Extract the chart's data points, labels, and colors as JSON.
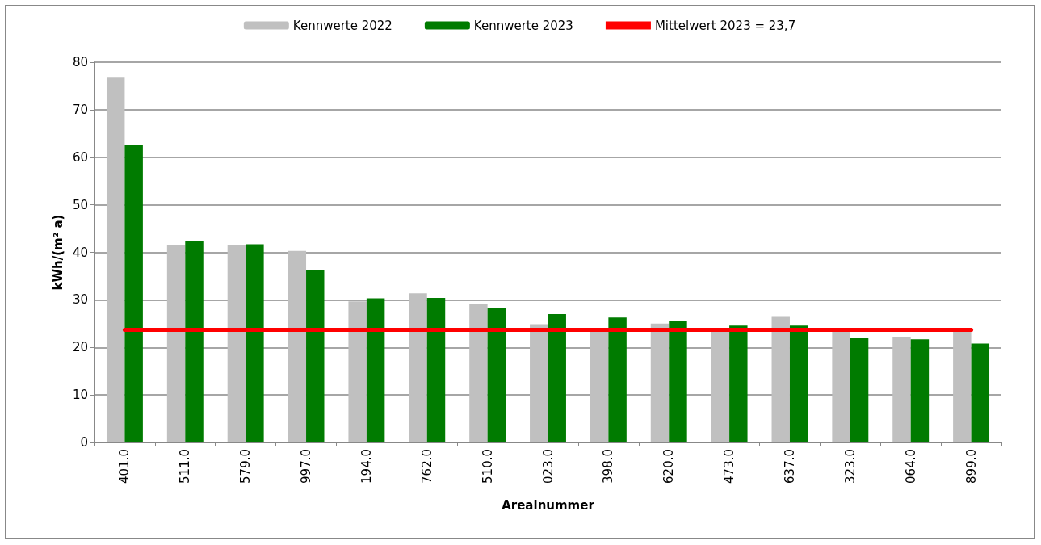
{
  "chart_data": {
    "type": "bar",
    "xlabel": "Arealnummer",
    "ylabel": "kWh/(m² a)",
    "categories": [
      "401.0",
      "511.0",
      "579.0",
      "997.0",
      "194.0",
      "762.0",
      "510.0",
      "023.0",
      "398.0",
      "620.0",
      "473.0",
      "637.0",
      "323.0",
      "064.0",
      "899.0"
    ],
    "series": [
      {
        "name": "Kennwerte 2022",
        "color": "#c0c0c0",
        "values": [
          76.9,
          41.6,
          41.5,
          40.3,
          29.7,
          31.4,
          29.2,
          24.9,
          23.6,
          25.0,
          23.6,
          26.6,
          23.6,
          22.2,
          23.6
        ]
      },
      {
        "name": "Kennwerte 2023",
        "color": "#007b00",
        "values": [
          62.5,
          42.4,
          41.7,
          36.2,
          30.3,
          30.4,
          28.3,
          27.0,
          26.3,
          25.6,
          24.6,
          24.6,
          21.9,
          21.7,
          20.8
        ]
      }
    ],
    "ref_lines": [
      {
        "axis": "y",
        "value": 23.7,
        "label": "Mittelwert 2023 = 23,7",
        "color": "#ff0000"
      }
    ],
    "ylim": [
      0,
      80
    ],
    "yticks": [
      0,
      10,
      20,
      30,
      40,
      50,
      60,
      70,
      80
    ],
    "grid": "y",
    "legend": "top"
  }
}
